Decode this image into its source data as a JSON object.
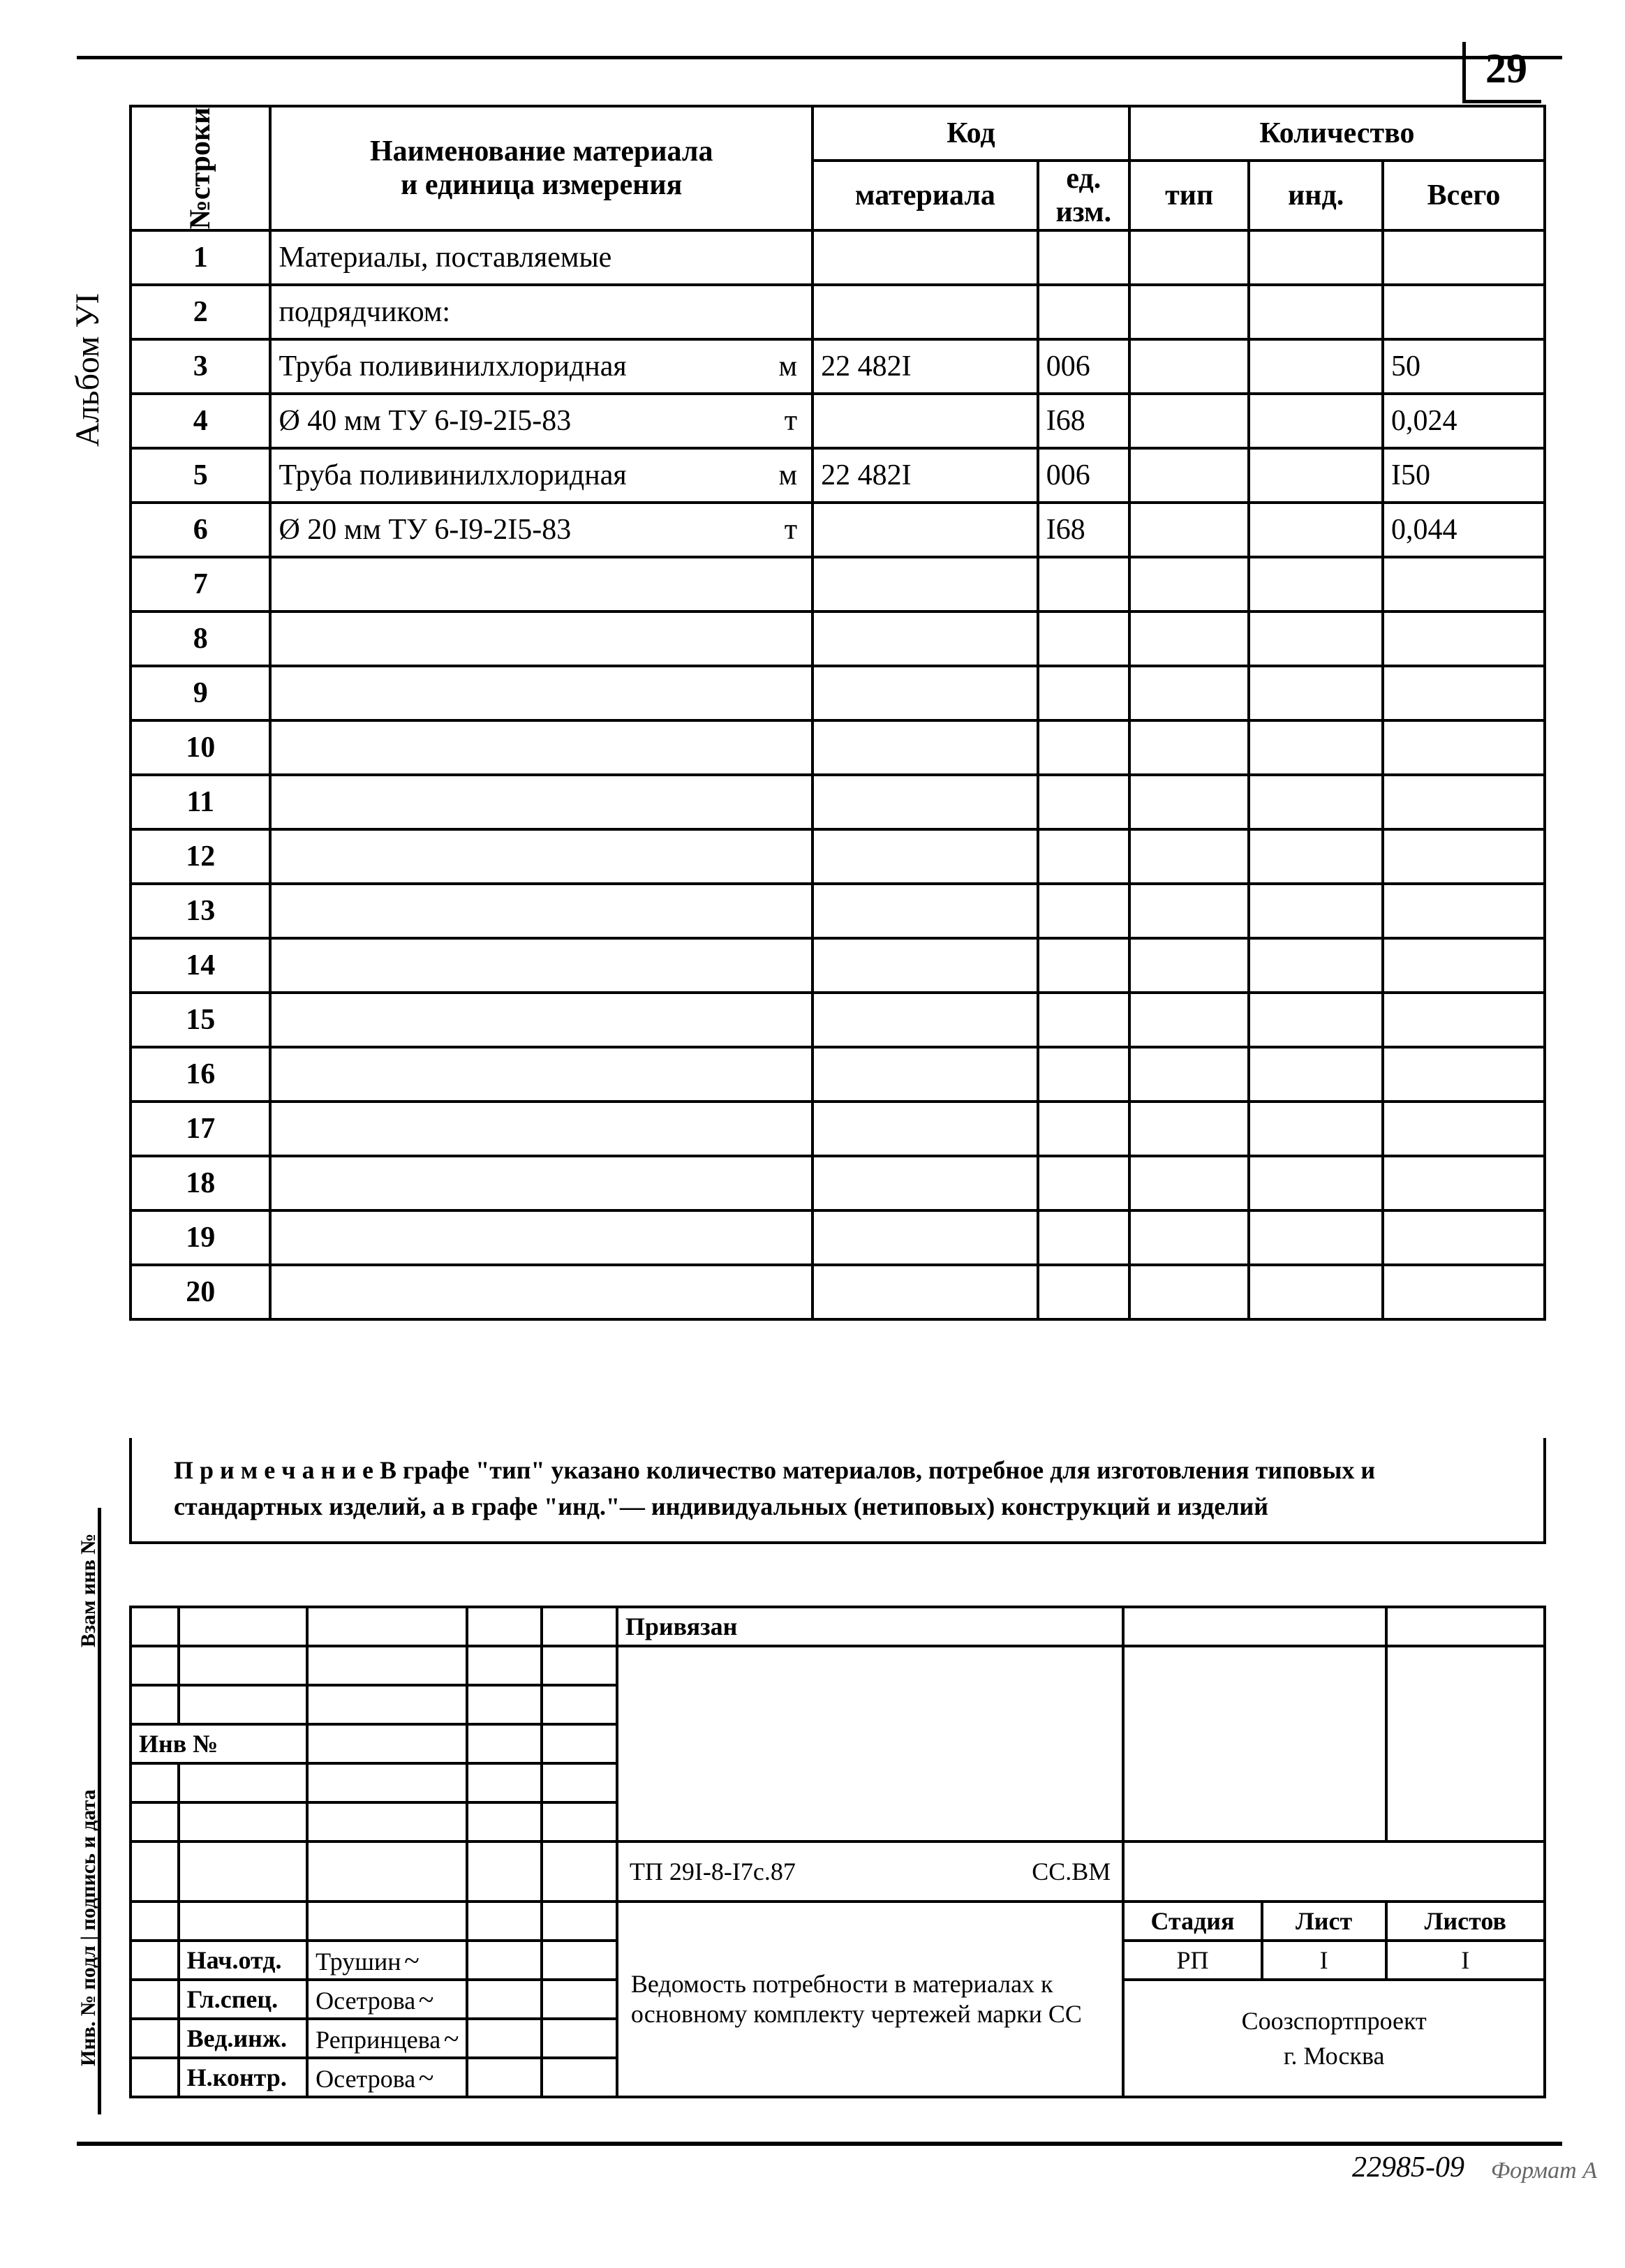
{
  "page_number": "29",
  "side_label": "Альбом УI",
  "side_label2": "Взам инв  №",
  "side_label3": "Инв. № подл | подпись и дата",
  "table": {
    "header": {
      "rowno": "№строки",
      "name": "Наименование материала\nи единица измерения",
      "name_l1": "Наименование материала",
      "name_l2": "и единица измерения",
      "code": "Код",
      "code_mat": "материала",
      "code_ed_l1": "ед.",
      "code_ed_l2": "изм.",
      "qty": "Количество",
      "qty_tip": "тип",
      "qty_ind": "инд.",
      "qty_total": "Всего"
    },
    "rows": [
      {
        "n": "1",
        "name": "Материалы, поставляемые",
        "unit": "",
        "mat": "",
        "ed": "",
        "tip": "",
        "ind": "",
        "tot": ""
      },
      {
        "n": "2",
        "name": "подрядчиком:",
        "unit": "",
        "mat": "",
        "ed": "",
        "tip": "",
        "ind": "",
        "tot": ""
      },
      {
        "n": "3",
        "name": "Труба поливинилхлоридная",
        "unit": "м",
        "mat": "22  482I",
        "ed": "006",
        "tip": "",
        "ind": "",
        "tot": "50"
      },
      {
        "n": "4",
        "name": "Ø 40 мм   ТУ 6-I9-2I5-83",
        "unit": "т",
        "mat": "",
        "ed": "I68",
        "tip": "",
        "ind": "",
        "tot": "0,024"
      },
      {
        "n": "5",
        "name": "Труба поливинилхлоридная",
        "unit": "м",
        "mat": "22  482I",
        "ed": "006",
        "tip": "",
        "ind": "",
        "tot": "I50"
      },
      {
        "n": "6",
        "name": "Ø 20 мм   ТУ 6-I9-2I5-83",
        "unit": "т",
        "mat": "",
        "ed": "I68",
        "tip": "",
        "ind": "",
        "tot": "0,044"
      },
      {
        "n": "7",
        "name": "",
        "unit": "",
        "mat": "",
        "ed": "",
        "tip": "",
        "ind": "",
        "tot": ""
      },
      {
        "n": "8",
        "name": "",
        "unit": "",
        "mat": "",
        "ed": "",
        "tip": "",
        "ind": "",
        "tot": ""
      },
      {
        "n": "9",
        "name": "",
        "unit": "",
        "mat": "",
        "ed": "",
        "tip": "",
        "ind": "",
        "tot": ""
      },
      {
        "n": "10",
        "name": "",
        "unit": "",
        "mat": "",
        "ed": "",
        "tip": "",
        "ind": "",
        "tot": ""
      },
      {
        "n": "11",
        "name": "",
        "unit": "",
        "mat": "",
        "ed": "",
        "tip": "",
        "ind": "",
        "tot": ""
      },
      {
        "n": "12",
        "name": "",
        "unit": "",
        "mat": "",
        "ed": "",
        "tip": "",
        "ind": "",
        "tot": ""
      },
      {
        "n": "13",
        "name": "",
        "unit": "",
        "mat": "",
        "ed": "",
        "tip": "",
        "ind": "",
        "tot": ""
      },
      {
        "n": "14",
        "name": "",
        "unit": "",
        "mat": "",
        "ed": "",
        "tip": "",
        "ind": "",
        "tot": ""
      },
      {
        "n": "15",
        "name": "",
        "unit": "",
        "mat": "",
        "ed": "",
        "tip": "",
        "ind": "",
        "tot": ""
      },
      {
        "n": "16",
        "name": "",
        "unit": "",
        "mat": "",
        "ed": "",
        "tip": "",
        "ind": "",
        "tot": ""
      },
      {
        "n": "17",
        "name": "",
        "unit": "",
        "mat": "",
        "ed": "",
        "tip": "",
        "ind": "",
        "tot": ""
      },
      {
        "n": "18",
        "name": "",
        "unit": "",
        "mat": "",
        "ed": "",
        "tip": "",
        "ind": "",
        "tot": ""
      },
      {
        "n": "19",
        "name": "",
        "unit": "",
        "mat": "",
        "ed": "",
        "tip": "",
        "ind": "",
        "tot": ""
      },
      {
        "n": "20",
        "name": "",
        "unit": "",
        "mat": "",
        "ed": "",
        "tip": "",
        "ind": "",
        "tot": ""
      }
    ]
  },
  "note": "П р и м е ч а н и е  В графе \"тип\" указано количество материалов, потребное для изготовления типовых и стандартных изделий, а в графе \"инд.\"— индивидуальных (нетиповых) конструкций и изделий",
  "stamp": {
    "priv": "Привязан",
    "inv": "Инв  №",
    "doc_code": "ТП 29I-8-I7с.87",
    "doc_suffix": "СС.ВМ",
    "title": "Ведомость потребности в материалах к основному комплекту чертежей марки СС",
    "hdr_stage": "Стадия",
    "hdr_sheet": "Лист",
    "hdr_sheets": "Листов",
    "val_stage": "РП",
    "val_sheet": "I",
    "val_sheets": "I",
    "org_l1": "Соозспортпроект",
    "org_l2": "г. Москва",
    "roles": [
      {
        "role": "Нач.отд.",
        "name": "Трушин"
      },
      {
        "role": "Гл.спец.",
        "name": "Осетрова"
      },
      {
        "role": "Вед.инж.",
        "name": "Репринцева"
      },
      {
        "role": "Н.контр.",
        "name": "Осетрова"
      }
    ]
  },
  "footer": "22985-09",
  "footer2": "Формат А"
}
